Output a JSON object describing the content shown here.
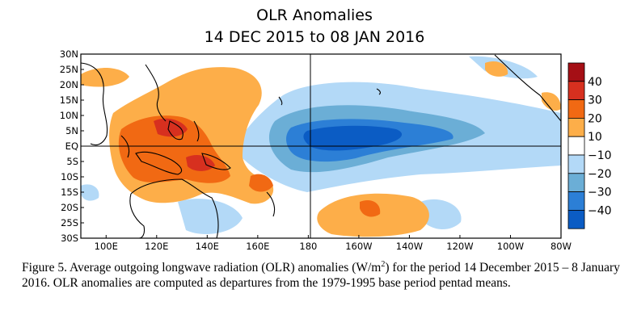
{
  "title": "OLR Anomalies",
  "subtitle": "14 DEC 2015 to 08 JAN 2016",
  "map": {
    "lat_range": [
      -30,
      30
    ],
    "lon_range_east": [
      90,
      280
    ],
    "lat_ticks": [
      "30N",
      "25N",
      "20N",
      "15N",
      "10N",
      "5N",
      "EQ",
      "5S",
      "10S",
      "15S",
      "20S",
      "25S",
      "30S"
    ],
    "lon_ticks": [
      "100E",
      "120E",
      "140E",
      "160E",
      "180",
      "160W",
      "140W",
      "120W",
      "100W",
      "80W"
    ],
    "reference_lines": [
      "EQ",
      "180"
    ],
    "units": "W/m²"
  },
  "colorbar": {
    "ticks": [
      "40",
      "30",
      "20",
      "10",
      "−10",
      "−20",
      "−30",
      "−40"
    ],
    "colors": {
      "gt40": "#a50f15",
      "30_40": "#d7301f",
      "20_30": "#f16913",
      "10_20": "#fdae49",
      "neutral": "#ffffff",
      "m10_m20": "#b3d9f7",
      "m20_m30": "#6baed6",
      "m30_m40": "#2c7fd6",
      "lt_m40": "#0b5cc4"
    }
  },
  "caption": {
    "prefix": "Figure 5. Average outgoing longwave radiation (OLR) anomalies (W/m",
    "sup": "2",
    "suffix": ") for the period 14 December 2015 – 8 January 2016. OLR anomalies are computed as departures from the 1979-1995 base period pentad means."
  }
}
